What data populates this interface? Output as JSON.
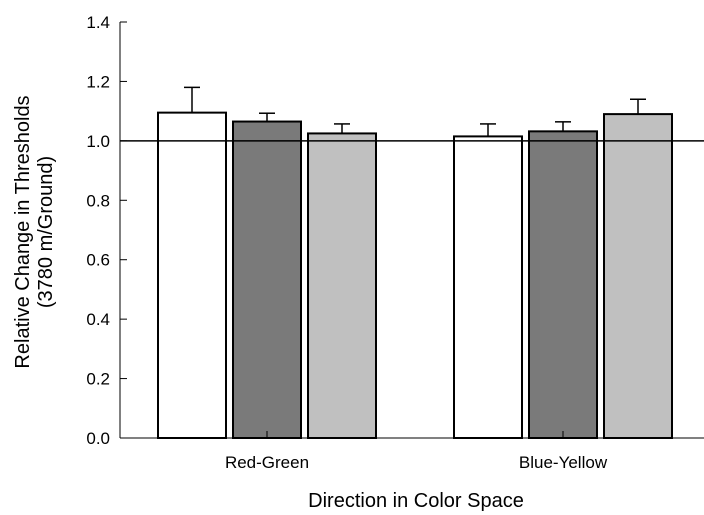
{
  "chart_data": {
    "type": "bar",
    "title": "",
    "xlabel": "Direction in Color Space",
    "ylabel_line1": "Relative Change in Thresholds",
    "ylabel_line2": "(3780 m/Ground)",
    "categories": [
      "Red-Green",
      "Blue-Yellow"
    ],
    "series": [
      {
        "color": "#ffffff",
        "values": [
          1.095,
          1.015
        ],
        "errors": [
          0.085,
          0.042
        ]
      },
      {
        "color": "#7a7a7a",
        "values": [
          1.065,
          1.032
        ],
        "errors": [
          0.028,
          0.032
        ]
      },
      {
        "color": "#c0c0c0",
        "values": [
          1.025,
          1.09
        ],
        "errors": [
          0.032,
          0.05
        ]
      }
    ],
    "ylim": [
      0.0,
      1.4
    ],
    "yticks": [
      0.0,
      0.2,
      0.4,
      0.6,
      0.8,
      1.0,
      1.2,
      1.4
    ],
    "ytick_labels": [
      "0.0",
      "0.2",
      "0.4",
      "0.6",
      "0.8",
      "1.0",
      "1.2",
      "1.4"
    ],
    "reference_line": 1.0,
    "grid": false
  }
}
